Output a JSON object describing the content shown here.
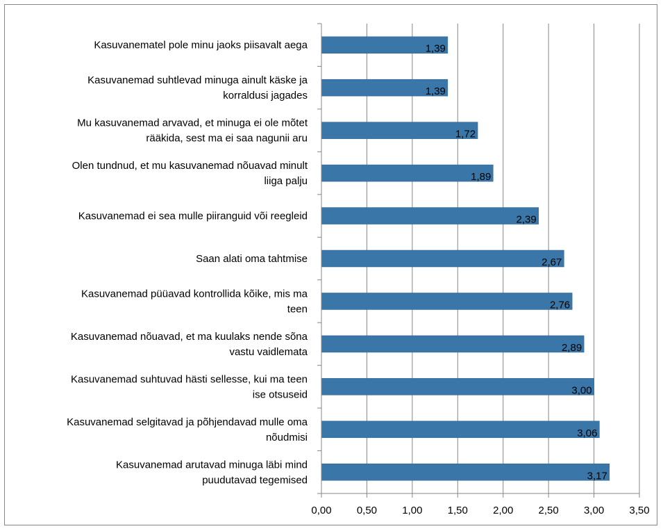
{
  "chart_data": {
    "type": "bar",
    "orientation": "horizontal",
    "categories": [
      [
        "Kasuvanematel pole minu jaoks piisavalt aega"
      ],
      [
        "Kasuvanemad suhtlevad minuga ainult käske ja",
        "korraldusi jagades"
      ],
      [
        "Mu kasuvanemad arvavad, et minuga ei ole mõtet",
        "rääkida, sest ma ei saa nagunii aru"
      ],
      [
        "Olen tundnud, et mu kasuvanemad nõuavad minult",
        "liiga palju"
      ],
      [
        "Kasuvanemad ei sea mulle piiranguid või reegleid"
      ],
      [
        "Saan alati oma tahtmise"
      ],
      [
        "Kasuvanemad püüavad kontrollida kõike, mis ma",
        "teen"
      ],
      [
        "Kasuvanemad nõuavad, et ma kuulaks nende sõna",
        "vastu vaidlemata"
      ],
      [
        "Kasuvanemad suhtuvad hästi sellesse, kui ma teen",
        "ise otsuseid"
      ],
      [
        "Kasuvanemad selgitavad ja põhjendavad mulle oma",
        "nõudmisi"
      ],
      [
        "Kasuvanemad arutavad minuga läbi mind",
        "puudutavad tegemised"
      ]
    ],
    "values": [
      1.39,
      1.39,
      1.72,
      1.89,
      2.39,
      2.67,
      2.76,
      2.89,
      3.0,
      3.06,
      3.17
    ],
    "data_labels": [
      "1,39",
      "1,39",
      "1,72",
      "1,89",
      "2,39",
      "2,67",
      "2,76",
      "2,89",
      "3,00",
      "3,06",
      "3,17"
    ],
    "x_ticks": [
      0,
      0.5,
      1,
      1.5,
      2,
      2.5,
      3,
      3.5
    ],
    "x_tick_labels": [
      "0,00",
      "0,50",
      "1,00",
      "1,50",
      "2,00",
      "2,50",
      "3,00",
      "3,50"
    ],
    "xlim": [
      0,
      3.5
    ],
    "title": "",
    "xlabel": "",
    "ylabel": "",
    "grid": "vertical",
    "legend": "none",
    "colors": {
      "bar": "#3A76A8",
      "bar_edge": "#2F6391",
      "grid": "#868686",
      "axis": "#868686",
      "text": "#000000"
    }
  }
}
